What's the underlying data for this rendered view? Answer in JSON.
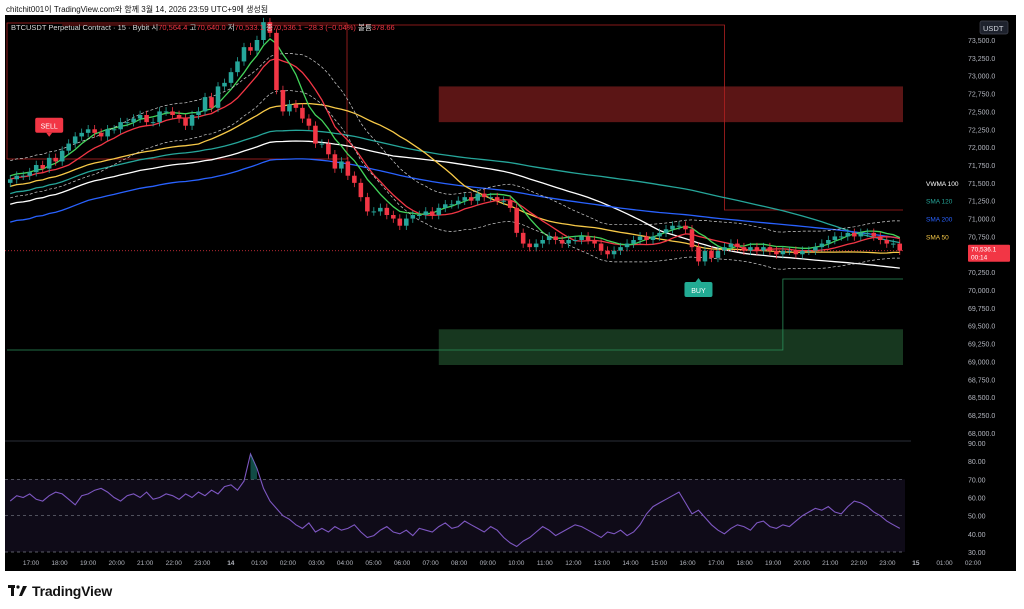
{
  "caption": "chitchit001이 TradingView.com와 함께 3월 14, 2026 23:59 UTC+9에 생성됨",
  "header": {
    "symbol": "BTCUSDT Perpetual Contract · 15 · Bybit",
    "open_label": "시",
    "open_value": "70,564.4",
    "high_label": "고",
    "high_value": "70,640.0",
    "low_label": "저",
    "low_value": "70,533.1",
    "close_label": "종",
    "close_value": "70,536.1",
    "change": "−28.3 (−0.04%)",
    "volume_label": "볼륨",
    "volume_value": "378.66"
  },
  "currency_label": "USDT",
  "price_tag": {
    "value": "70,536.1",
    "countdown": "00:14",
    "color": "#f23645"
  },
  "indicator_labels": [
    {
      "text": "VWMA 100",
      "color": "#ffffff",
      "price": 71500
    },
    {
      "text": "SMA 120",
      "color": "#26a69a",
      "price": 71250
    },
    {
      "text": "SMA 200",
      "color": "#2962ff",
      "price": 71000
    },
    {
      "text": "SMA 50",
      "color": "#f7c948",
      "price": 70750
    }
  ],
  "signals": [
    {
      "text": "SELL",
      "color": "#f23645",
      "bar": 6
    },
    {
      "text": "BUY",
      "color": "#22ab94",
      "bar": 106
    }
  ],
  "footer": {
    "brand": "TradingView"
  },
  "chart_data": [
    {
      "type": "candlestick",
      "title": "BTCUSDT Perpetual Contract · 15 · Bybit",
      "ylim": [
        67900,
        73850
      ],
      "y_ticks": [
        "73,500.0",
        "73,250.0",
        "73,000.0",
        "72,750.0",
        "72,500.0",
        "72,250.0",
        "72,000.0",
        "71,750.0",
        "71,500.0",
        "71,250.0",
        "71,000.0",
        "70,750.0",
        "70,500.0",
        "70,250.0",
        "70,000.0",
        "69,750.0",
        "69,500.0",
        "69,250.0",
        "69,000.0",
        "68,750.0",
        "68,500.0",
        "68,250.0",
        "68,000.0"
      ],
      "x_ticks": [
        "17:00",
        "18:00",
        "19:00",
        "20:00",
        "21:00",
        "22:00",
        "23:00",
        "14",
        "01:00",
        "02:00",
        "03:00",
        "04:00",
        "05:00",
        "06:00",
        "07:00",
        "08:00",
        "09:00",
        "10:00",
        "11:00",
        "12:00",
        "13:00",
        "14:00",
        "15:00",
        "16:00",
        "17:00",
        "18:00",
        "19:00",
        "20:00",
        "21:00",
        "22:00",
        "23:00",
        "15",
        "01:00",
        "02:00"
      ],
      "close": [
        71550,
        71600,
        71600,
        71650,
        71750,
        71700,
        71850,
        71800,
        71950,
        72050,
        72150,
        72200,
        72250,
        72200,
        72150,
        72250,
        72250,
        72350,
        72350,
        72400,
        72450,
        72350,
        72350,
        72500,
        72500,
        72450,
        72400,
        72300,
        72450,
        72500,
        72700,
        72550,
        72850,
        72900,
        73050,
        73200,
        73400,
        73350,
        73500,
        73750,
        73600,
        72800,
        72500,
        72600,
        72550,
        72400,
        72300,
        72050,
        72050,
        71900,
        71700,
        71800,
        71600,
        71500,
        71300,
        71100,
        71100,
        71150,
        71050,
        71000,
        70900,
        71000,
        71050,
        71050,
        71100,
        71050,
        71150,
        71200,
        71200,
        71250,
        71300,
        71250,
        71350,
        71300,
        71300,
        71250,
        71250,
        71150,
        70800,
        70650,
        70600,
        70650,
        70700,
        70750,
        70700,
        70650,
        70700,
        70700,
        70750,
        70700,
        70650,
        70550,
        70500,
        70550,
        70600,
        70650,
        70700,
        70750,
        70700,
        70750,
        70800,
        70850,
        70900,
        70900,
        70850,
        70600,
        70400,
        70550,
        70450,
        70550,
        70600,
        70650,
        70600,
        70550,
        70600,
        70550,
        70600,
        70550,
        70500,
        70550,
        70550,
        70500,
        70550,
        70550,
        70600,
        70650,
        70700,
        70750,
        70750,
        70800,
        70750,
        70800,
        70800,
        70750,
        70700,
        70650,
        70650,
        70550
      ],
      "rsi": {
        "ylim": [
          30,
          90
        ],
        "y_ticks": [
          "90.00",
          "80.00",
          "70.00",
          "60.00",
          "50.00",
          "40.00",
          "30.00"
        ],
        "band": [
          30,
          70
        ],
        "mid": 50,
        "values": [
          58,
          61,
          60,
          62,
          59,
          58,
          61,
          63,
          62,
          59,
          56,
          61,
          62,
          64,
          65,
          63,
          60,
          58,
          61,
          62,
          60,
          63,
          59,
          60,
          62,
          61,
          59,
          62,
          60,
          63,
          61,
          64,
          62,
          66,
          67,
          64,
          69,
          84,
          76,
          65,
          58,
          54,
          50,
          48,
          45,
          43,
          46,
          41,
          43,
          41,
          44,
          42,
          43,
          45,
          41,
          38,
          39,
          42,
          44,
          41,
          40,
          42,
          39,
          43,
          42,
          41,
          44,
          46,
          43,
          44,
          47,
          45,
          43,
          41,
          44,
          42,
          38,
          35,
          33,
          36,
          38,
          41,
          44,
          42,
          39,
          41,
          43,
          45,
          44,
          42,
          40,
          38,
          41,
          40,
          42,
          39,
          41,
          45,
          51,
          55,
          57,
          59,
          61,
          63,
          57,
          51,
          53,
          49,
          45,
          42,
          40,
          43,
          45,
          44,
          42,
          46,
          47,
          44,
          43,
          45,
          44,
          47,
          50,
          52,
          54,
          53,
          55,
          52,
          51,
          55,
          58,
          57,
          55,
          52,
          50,
          47,
          45,
          43
        ]
      },
      "series": [
        {
          "name": "VWMA 100",
          "color": "#ffffff"
        },
        {
          "name": "SMA 120",
          "color": "#26a69a"
        },
        {
          "name": "SMA 200",
          "color": "#2962ff"
        },
        {
          "name": "SMA 50",
          "color": "#f7c948"
        }
      ],
      "zones": [
        {
          "from": 72350,
          "to": 72850,
          "color": "#7a1c1c"
        },
        {
          "from": 68950,
          "to": 69450,
          "color": "#1f4a2a"
        }
      ]
    }
  ]
}
